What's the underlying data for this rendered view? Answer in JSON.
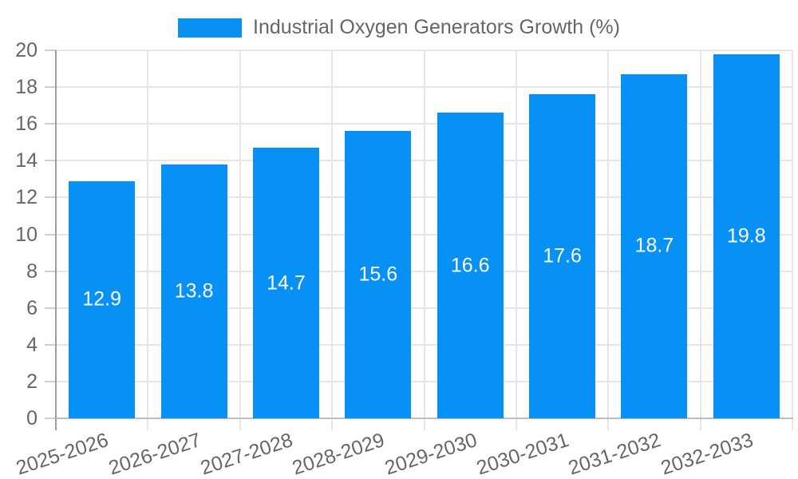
{
  "legend": {
    "label": "Industrial Oxygen Generators Growth (%)"
  },
  "chart_data": {
    "type": "bar",
    "title": "",
    "categories": [
      "2025-2026",
      "2026-2027",
      "2027-2028",
      "2028-2029",
      "2029-2030",
      "2030-2031",
      "2031-2032",
      "2032-2033"
    ],
    "series": [
      {
        "name": "Industrial Oxygen Generators Growth (%)",
        "values": [
          12.9,
          13.8,
          14.7,
          15.6,
          16.6,
          17.6,
          18.7,
          19.8
        ]
      }
    ],
    "bar_value_labels": [
      "12.9",
      "13.8",
      "14.7",
      "15.6",
      "16.6",
      "17.6",
      "18.7",
      "19.8"
    ],
    "xlabel": "",
    "ylabel": "",
    "ylim": [
      0,
      20
    ],
    "yticks": [
      0,
      2,
      4,
      6,
      8,
      10,
      12,
      14,
      16,
      18,
      20
    ],
    "grid": true,
    "legend_position": "top-center",
    "x_label_rotation_deg": -18,
    "colors": {
      "bar": "#0891f5",
      "bar_label_text": "#ffffff",
      "axis_text": "#666666",
      "gridline": "#e6e6e6",
      "y_axis_line": "#9e9e9e",
      "x_axis_line": "#bdbdbd"
    }
  }
}
